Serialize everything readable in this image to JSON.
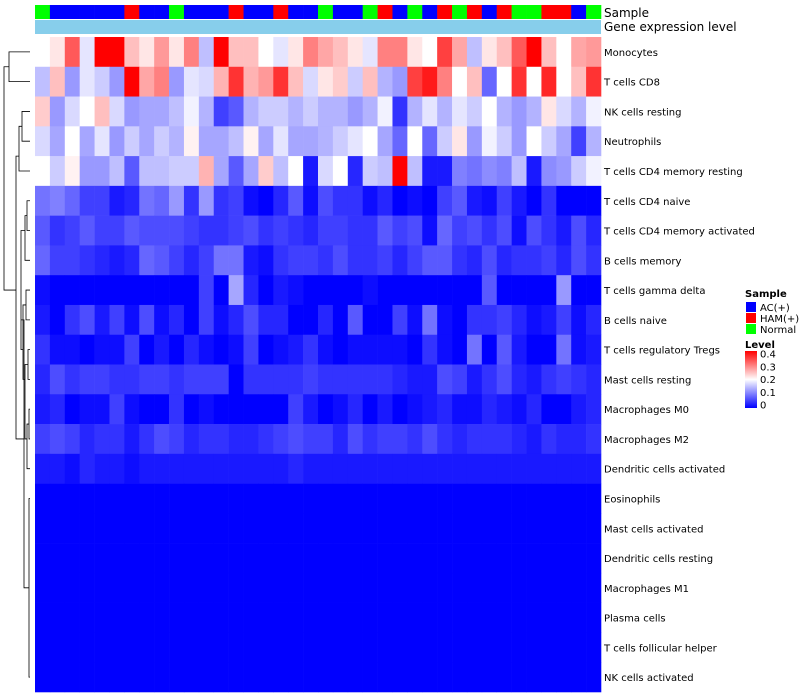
{
  "chart_data": {
    "type": "heatmap",
    "annotation_tracks": [
      "Sample",
      "Gene expression level"
    ],
    "rows": [
      "Monocytes",
      "T cells CD8",
      "NK cells resting",
      "Neutrophils",
      "T cells CD4 memory resting",
      "T cells CD4 naive",
      "T cells CD4 memory activated",
      "B cells memory",
      "T cells gamma delta",
      "B cells naive",
      "T cells regulatory  Tregs",
      "Mast cells resting",
      "Macrophages M0",
      "Macrophages M2",
      "Dendritic cells activated",
      "Eosinophils",
      "Mast cells activated",
      "Dendritic cells resting",
      "Macrophages M1",
      "Plasma cells",
      "T cells follicular helper",
      "NK cells activated"
    ],
    "sample_groups": [
      "Normal",
      "AC(+)",
      "AC(+)",
      "AC(+)",
      "AC(+)",
      "AC(+)",
      "HAM(+)",
      "AC(+)",
      "AC(+)",
      "Normal",
      "AC(+)",
      "AC(+)",
      "AC(+)",
      "HAM(+)",
      "AC(+)",
      "AC(+)",
      "HAM(+)",
      "AC(+)",
      "AC(+)",
      "Normal",
      "AC(+)",
      "AC(+)",
      "Normal",
      "HAM(+)",
      "AC(+)",
      "Normal",
      "AC(+)",
      "HAM(+)",
      "Normal",
      "HAM(+)",
      "AC(+)",
      "HAM(+)",
      "Normal",
      "Normal",
      "HAM(+)",
      "HAM(+)",
      "AC(+)",
      "Normal"
    ],
    "gene_expression_level": "uniform",
    "values": [
      [
        0.2,
        0.22,
        0.33,
        0.18,
        0.4,
        0.4,
        0.25,
        0.22,
        0.28,
        0.22,
        0.3,
        0.15,
        0.4,
        0.25,
        0.25,
        0.2,
        0.18,
        0.22,
        0.3,
        0.27,
        0.25,
        0.22,
        0.18,
        0.3,
        0.3,
        0.22,
        0.2,
        0.35,
        0.27,
        0.15,
        0.22,
        0.25,
        0.33,
        0.4,
        0.25,
        0.2,
        0.27,
        0.28
      ],
      [
        0.15,
        0.25,
        0.12,
        0.18,
        0.16,
        0.12,
        0.4,
        0.27,
        0.3,
        0.12,
        0.18,
        0.17,
        0.26,
        0.36,
        0.26,
        0.28,
        0.36,
        0.25,
        0.17,
        0.22,
        0.24,
        0.16,
        0.25,
        0.14,
        0.12,
        0.35,
        0.38,
        0.3,
        0.2,
        0.25,
        0.08,
        0.2,
        0.36,
        0.2,
        0.37,
        0.2,
        0.25,
        0.36
      ],
      [
        0.24,
        0.12,
        0.17,
        0.2,
        0.25,
        0.17,
        0.12,
        0.13,
        0.13,
        0.15,
        0.19,
        0.14,
        0.05,
        0.07,
        0.14,
        0.16,
        0.16,
        0.14,
        0.16,
        0.14,
        0.14,
        0.12,
        0.14,
        0.19,
        0.04,
        0.14,
        0.18,
        0.14,
        0.18,
        0.16,
        0.2,
        0.14,
        0.12,
        0.14,
        0.22,
        0.17,
        0.14,
        0.19
      ],
      [
        0.17,
        0.13,
        0.2,
        0.13,
        0.18,
        0.12,
        0.16,
        0.13,
        0.16,
        0.14,
        0.21,
        0.13,
        0.13,
        0.15,
        0.21,
        0.13,
        0.18,
        0.13,
        0.13,
        0.14,
        0.16,
        0.18,
        0.2,
        0.13,
        0.08,
        0.2,
        0.08,
        0.16,
        0.22,
        0.12,
        0.19,
        0.16,
        0.12,
        0.2,
        0.16,
        0.13,
        0.05,
        0.14
      ],
      [
        0.2,
        0.16,
        0.21,
        0.12,
        0.12,
        0.15,
        0.07,
        0.15,
        0.15,
        0.16,
        0.16,
        0.26,
        0.13,
        0.07,
        0.13,
        0.24,
        0.15,
        0.2,
        0.02,
        0.17,
        0.2,
        0.03,
        0.16,
        0.15,
        0.4,
        0.15,
        0.02,
        0.02,
        0.1,
        0.09,
        0.11,
        0.1,
        0.15,
        0.02,
        0.11,
        0.12,
        0.16,
        0.19
      ],
      [
        0.09,
        0.1,
        0.08,
        0.05,
        0.05,
        0.02,
        0.03,
        0.09,
        0.08,
        0.12,
        0.04,
        0.12,
        0.04,
        0.05,
        0.01,
        0.0,
        0.03,
        0.07,
        0.01,
        0.06,
        0.04,
        0.04,
        0.01,
        0.03,
        0.0,
        0.01,
        0.0,
        0.05,
        0.07,
        0.02,
        0.01,
        0.05,
        0.02,
        0.0,
        0.04,
        0.0,
        0.0,
        0.0
      ],
      [
        0.07,
        0.04,
        0.05,
        0.07,
        0.05,
        0.05,
        0.07,
        0.06,
        0.06,
        0.06,
        0.05,
        0.04,
        0.04,
        0.05,
        0.06,
        0.04,
        0.05,
        0.04,
        0.03,
        0.05,
        0.05,
        0.04,
        0.04,
        0.07,
        0.05,
        0.06,
        0.01,
        0.08,
        0.05,
        0.06,
        0.04,
        0.06,
        0.01,
        0.06,
        0.04,
        0.02,
        0.06,
        0.03
      ],
      [
        0.08,
        0.05,
        0.05,
        0.04,
        0.03,
        0.02,
        0.03,
        0.08,
        0.07,
        0.05,
        0.03,
        0.05,
        0.09,
        0.09,
        0.02,
        0.01,
        0.04,
        0.05,
        0.05,
        0.04,
        0.06,
        0.04,
        0.04,
        0.05,
        0.03,
        0.05,
        0.07,
        0.07,
        0.04,
        0.03,
        0.06,
        0.03,
        0.04,
        0.04,
        0.05,
        0.03,
        0.06,
        0.04
      ],
      [
        0.01,
        0.0,
        0.0,
        0.0,
        0.0,
        0.0,
        0.0,
        0.0,
        0.0,
        0.0,
        0.0,
        0.05,
        0.0,
        0.13,
        0.03,
        0.0,
        0.02,
        0.01,
        0.0,
        0.0,
        0.0,
        0.0,
        0.01,
        0.0,
        0.0,
        0.0,
        0.0,
        0.0,
        0.0,
        0.0,
        0.07,
        0.0,
        0.0,
        0.0,
        0.0,
        0.12,
        0.0,
        0.0
      ],
      [
        0.02,
        0.0,
        0.04,
        0.06,
        0.02,
        0.05,
        0.01,
        0.06,
        0.01,
        0.03,
        0.0,
        0.05,
        0.01,
        0.03,
        0.06,
        0.03,
        0.03,
        0.0,
        0.0,
        0.03,
        0.0,
        0.07,
        0.0,
        0.0,
        0.05,
        0.01,
        0.09,
        0.01,
        0.0,
        0.04,
        0.04,
        0.05,
        0.03,
        0.01,
        0.02,
        0.05,
        0.01,
        0.03
      ],
      [
        0.04,
        0.01,
        0.01,
        0.0,
        0.01,
        0.01,
        0.05,
        0.0,
        0.02,
        0.0,
        0.03,
        0.01,
        0.0,
        0.01,
        0.05,
        0.0,
        0.01,
        0.02,
        0.04,
        0.01,
        0.0,
        0.01,
        0.01,
        0.01,
        0.01,
        0.0,
        0.04,
        0.01,
        0.0,
        0.09,
        0.0,
        0.07,
        0.02,
        0.0,
        0.0,
        0.09,
        0.01,
        0.02
      ],
      [
        0.03,
        0.06,
        0.04,
        0.05,
        0.05,
        0.04,
        0.04,
        0.05,
        0.05,
        0.04,
        0.05,
        0.05,
        0.05,
        0.0,
        0.04,
        0.04,
        0.04,
        0.04,
        0.05,
        0.04,
        0.04,
        0.04,
        0.04,
        0.04,
        0.03,
        0.02,
        0.02,
        0.06,
        0.05,
        0.02,
        0.04,
        0.06,
        0.03,
        0.02,
        0.04,
        0.05,
        0.04,
        0.03
      ],
      [
        0.02,
        0.03,
        0.0,
        0.01,
        0.01,
        0.05,
        0.01,
        0.0,
        0.0,
        0.04,
        0.0,
        0.01,
        0.0,
        0.0,
        0.0,
        0.0,
        0.0,
        0.05,
        0.02,
        0.0,
        0.01,
        0.03,
        0.0,
        0.02,
        0.0,
        0.01,
        0.02,
        0.03,
        0.01,
        0.01,
        0.03,
        0.02,
        0.01,
        0.03,
        0.0,
        0.0,
        0.02,
        0.03
      ],
      [
        0.05,
        0.06,
        0.05,
        0.03,
        0.04,
        0.04,
        0.02,
        0.04,
        0.06,
        0.05,
        0.03,
        0.04,
        0.04,
        0.03,
        0.03,
        0.04,
        0.05,
        0.06,
        0.05,
        0.05,
        0.03,
        0.06,
        0.04,
        0.05,
        0.05,
        0.04,
        0.06,
        0.04,
        0.03,
        0.04,
        0.04,
        0.04,
        0.03,
        0.02,
        0.04,
        0.03,
        0.03,
        0.04
      ],
      [
        0.02,
        0.02,
        0.01,
        0.03,
        0.02,
        0.02,
        0.01,
        0.02,
        0.02,
        0.02,
        0.02,
        0.02,
        0.02,
        0.02,
        0.02,
        0.02,
        0.02,
        0.03,
        0.02,
        0.02,
        0.02,
        0.02,
        0.02,
        0.02,
        0.02,
        0.02,
        0.02,
        0.02,
        0.02,
        0.02,
        0.02,
        0.02,
        0.02,
        0.02,
        0.02,
        0.02,
        0.02,
        0.02
      ],
      [
        0,
        0,
        0,
        0,
        0,
        0,
        0,
        0,
        0,
        0,
        0,
        0,
        0,
        0,
        0,
        0,
        0,
        0,
        0,
        0,
        0,
        0,
        0,
        0,
        0,
        0,
        0,
        0,
        0,
        0,
        0,
        0,
        0,
        0,
        0,
        0,
        0,
        0
      ],
      [
        0,
        0,
        0,
        0,
        0,
        0,
        0,
        0,
        0,
        0,
        0,
        0,
        0,
        0,
        0,
        0,
        0,
        0,
        0,
        0,
        0,
        0,
        0,
        0,
        0,
        0,
        0,
        0,
        0,
        0,
        0,
        0,
        0,
        0,
        0,
        0,
        0,
        0
      ],
      [
        0,
        0,
        0,
        0,
        0,
        0,
        0,
        0,
        0,
        0,
        0,
        0,
        0,
        0,
        0,
        0,
        0,
        0,
        0,
        0,
        0,
        0,
        0,
        0,
        0,
        0,
        0,
        0,
        0,
        0,
        0,
        0,
        0,
        0,
        0,
        0,
        0,
        0
      ],
      [
        0,
        0,
        0,
        0,
        0,
        0,
        0,
        0,
        0,
        0,
        0,
        0,
        0,
        0,
        0,
        0,
        0,
        0,
        0,
        0,
        0,
        0,
        0,
        0,
        0,
        0,
        0,
        0,
        0,
        0,
        0,
        0,
        0,
        0,
        0,
        0,
        0,
        0
      ],
      [
        0,
        0,
        0,
        0,
        0,
        0,
        0,
        0,
        0,
        0,
        0,
        0,
        0,
        0,
        0,
        0,
        0,
        0,
        0,
        0,
        0,
        0,
        0,
        0,
        0,
        0,
        0,
        0,
        0,
        0,
        0,
        0,
        0,
        0,
        0,
        0,
        0,
        0
      ],
      [
        0,
        0,
        0,
        0,
        0,
        0,
        0,
        0,
        0,
        0,
        0,
        0,
        0,
        0,
        0,
        0,
        0,
        0,
        0,
        0,
        0,
        0,
        0,
        0,
        0,
        0,
        0,
        0,
        0,
        0,
        0,
        0,
        0,
        0,
        0,
        0,
        0,
        0
      ],
      [
        0,
        0,
        0,
        0,
        0,
        0,
        0,
        0,
        0,
        0,
        0,
        0,
        0,
        0,
        0,
        0,
        0,
        0,
        0,
        0,
        0,
        0,
        0,
        0,
        0,
        0,
        0,
        0,
        0,
        0,
        0,
        0,
        0,
        0,
        0,
        0,
        0,
        0
      ]
    ],
    "color_scale": {
      "min": 0,
      "mid": 0.2,
      "max": 0.4,
      "low": "#0000ff",
      "midColor": "#ffffff",
      "high": "#ff0000"
    },
    "legend_sample": {
      "title": "Sample",
      "entries": [
        {
          "label": "AC(+)",
          "color": "#0000ff"
        },
        {
          "label": "HAM(+)",
          "color": "#ff0000"
        },
        {
          "label": "Normal",
          "color": "#00ff00"
        }
      ]
    },
    "legend_level": {
      "title": "Level",
      "ticks": [
        "0.4",
        "0.3",
        "0.2",
        "0.1",
        "0"
      ]
    },
    "gene_expression_color": "#87ceeb"
  }
}
